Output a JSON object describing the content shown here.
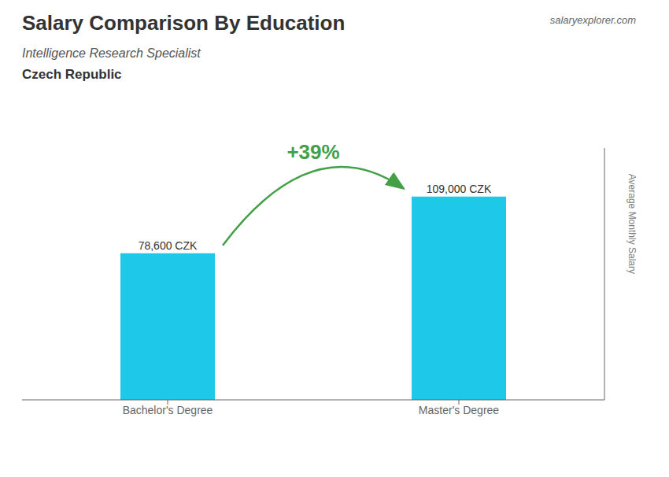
{
  "chart_data": {
    "type": "bar",
    "title": "Salary Comparison By Education",
    "subtitle": "Intelligence Research Specialist",
    "annotations": [
      "Czech Republic",
      "+39%",
      "salaryexplorer.com"
    ],
    "ylabel": "Average Monthly Salary",
    "categories": [
      "Bachelor's Degree",
      "Master's Degree"
    ],
    "values": [
      78600,
      109000
    ],
    "value_labels": [
      "78,600 CZK",
      "109,000 CZK"
    ],
    "data_labels": true,
    "color": "#1EC8E8",
    "ylim": [
      0,
      135000
    ],
    "tick_labels": "x",
    "grid": false
  }
}
